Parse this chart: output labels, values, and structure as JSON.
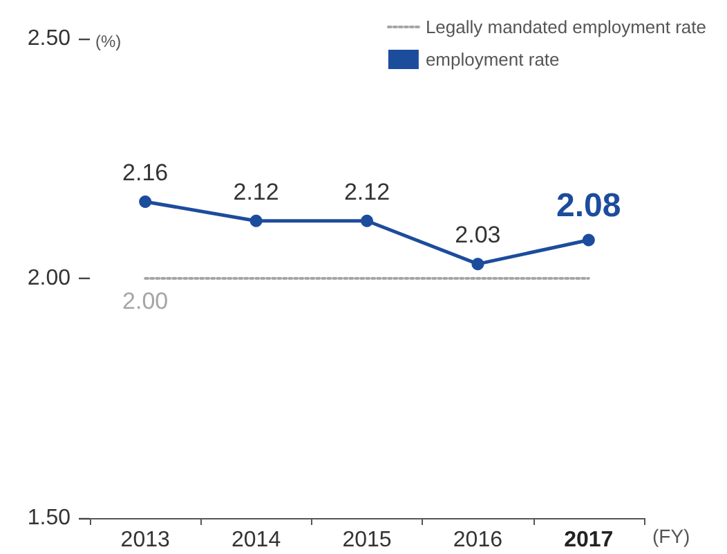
{
  "chart_data": {
    "type": "line",
    "categories": [
      "2013",
      "2014",
      "2015",
      "2016",
      "2017"
    ],
    "series": [
      {
        "name": "Legally mandated employment rate",
        "color": "#a6a6a6",
        "values": [
          2.0,
          2.0,
          2.0,
          2.0,
          2.0
        ],
        "marker": "none",
        "line_style": "dotted",
        "value_labels": [
          "2.00",
          null,
          null,
          null,
          null
        ]
      },
      {
        "name": "employment rate",
        "color": "#1c4c9c",
        "values": [
          2.16,
          2.12,
          2.12,
          2.03,
          2.08
        ],
        "marker": "circle",
        "line_style": "solid",
        "value_labels": [
          "2.16",
          "2.12",
          "2.12",
          "2.03",
          "2.08"
        ]
      }
    ],
    "ylabel": "(%)",
    "xlabel": "(FY)",
    "ylim": [
      1.5,
      2.5
    ],
    "yticks": [
      {
        "value": 1.5,
        "label": "1.50"
      },
      {
        "value": 2.0,
        "label": "2.00"
      },
      {
        "value": 2.5,
        "label": "2.50"
      }
    ],
    "grid": false,
    "legend": "top right"
  }
}
